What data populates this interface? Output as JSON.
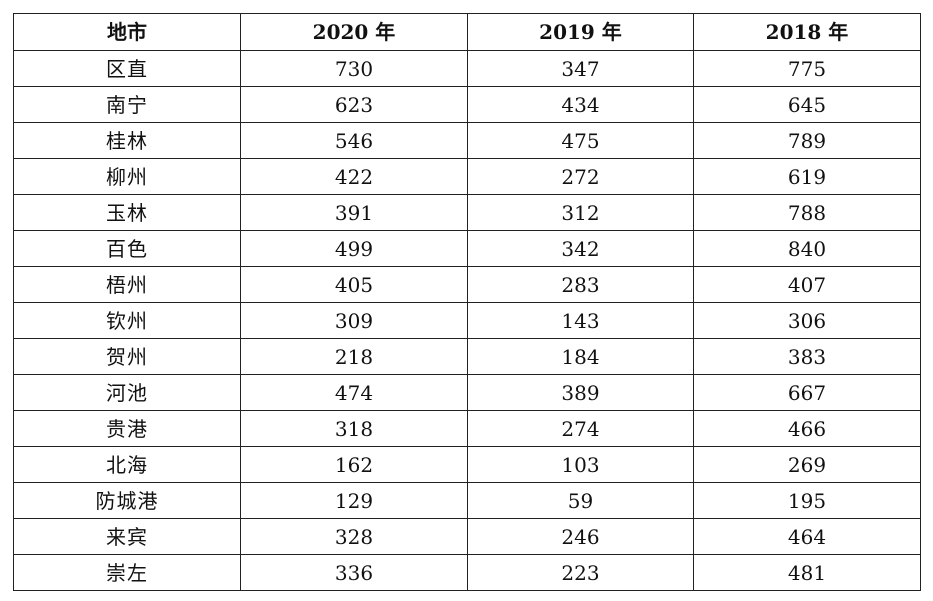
{
  "table": {
    "headers": [
      "地市",
      "2020 年",
      "2019 年",
      "2018 年"
    ],
    "rows": [
      [
        "区直",
        "730",
        "347",
        "775"
      ],
      [
        "南宁",
        "623",
        "434",
        "645"
      ],
      [
        "桂林",
        "546",
        "475",
        "789"
      ],
      [
        "柳州",
        "422",
        "272",
        "619"
      ],
      [
        "玉林",
        "391",
        "312",
        "788"
      ],
      [
        "百色",
        "499",
        "342",
        "840"
      ],
      [
        "梧州",
        "405",
        "283",
        "407"
      ],
      [
        "钦州",
        "309",
        "143",
        "306"
      ],
      [
        "贺州",
        "218",
        "184",
        "383"
      ],
      [
        "河池",
        "474",
        "389",
        "667"
      ],
      [
        "贵港",
        "318",
        "274",
        "466"
      ],
      [
        "北海",
        "162",
        "103",
        "269"
      ],
      [
        "防城港",
        "129",
        "59",
        "195"
      ],
      [
        "来宾",
        "328",
        "246",
        "464"
      ],
      [
        "崇左",
        "336",
        "223",
        "481"
      ]
    ]
  }
}
